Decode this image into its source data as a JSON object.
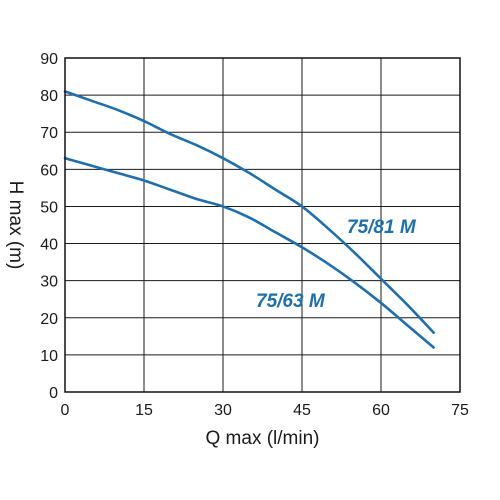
{
  "chart_data": {
    "type": "line",
    "title": "",
    "xlabel": "Q max (l/min)",
    "ylabel": "H max (m)",
    "xlim": [
      0,
      75
    ],
    "ylim": [
      0,
      90
    ],
    "xticks": [
      0,
      15,
      30,
      45,
      60,
      75
    ],
    "yticks": [
      0,
      10,
      20,
      30,
      40,
      50,
      60,
      70,
      80,
      90
    ],
    "grid": true,
    "line_color": "#1f6fad",
    "label_color": "#1f6fad",
    "series": [
      {
        "name": "75/81 M",
        "x": [
          0,
          5,
          10,
          15,
          20,
          25,
          30,
          35,
          40,
          45,
          50,
          55,
          60,
          65,
          70
        ],
        "y": [
          81,
          78.5,
          76,
          73,
          69.5,
          66.5,
          63,
          59,
          54.5,
          50,
          44,
          37.5,
          30.5,
          23.5,
          16
        ]
      },
      {
        "name": "75/63 M",
        "x": [
          0,
          5,
          10,
          15,
          20,
          25,
          30,
          35,
          40,
          45,
          50,
          55,
          60,
          65,
          70
        ],
        "y": [
          63,
          61,
          59,
          57,
          54.5,
          52,
          50,
          47,
          43,
          39,
          34.5,
          29.5,
          24,
          18,
          12
        ]
      }
    ]
  }
}
